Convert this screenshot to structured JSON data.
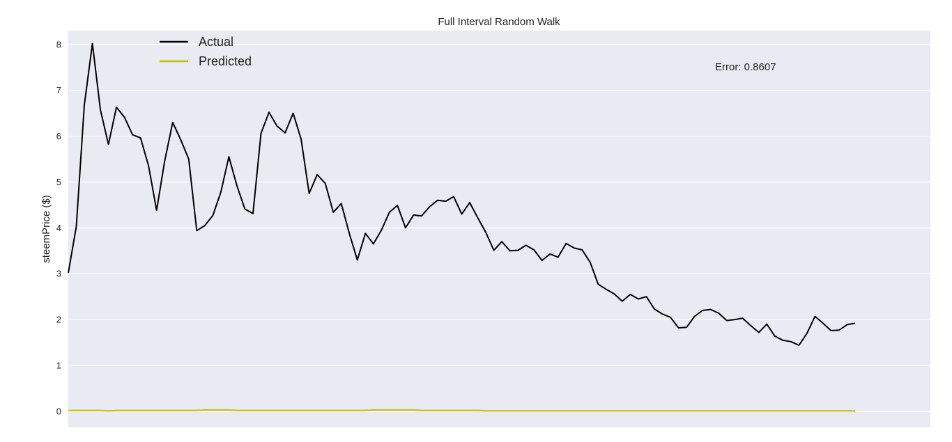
{
  "chart_data": {
    "type": "line",
    "title": "Full Interval Random Walk",
    "xlabel": "",
    "ylabel": "steemPrice ($)",
    "ylim": [
      -0.35,
      8.3
    ],
    "yticks": [
      0,
      1,
      2,
      3,
      4,
      5,
      6,
      7,
      8
    ],
    "xticks_shown": false,
    "grid": true,
    "legend_placement": "top-left",
    "annotation": "Error: 0.8607",
    "background": "#EAEAF2",
    "series": [
      {
        "name": "Actual",
        "color": "#000000",
        "values": [
          3.02,
          4.03,
          6.68,
          8.02,
          6.57,
          5.82,
          6.63,
          6.41,
          6.03,
          5.96,
          5.35,
          4.38,
          5.45,
          6.3,
          5.92,
          5.5,
          3.94,
          4.05,
          4.27,
          4.78,
          5.55,
          4.92,
          4.41,
          4.31,
          6.06,
          6.52,
          6.22,
          6.07,
          6.5,
          5.93,
          4.75,
          5.16,
          4.97,
          4.34,
          4.53,
          3.88,
          3.3,
          3.88,
          3.65,
          3.95,
          4.34,
          4.49,
          4.0,
          4.28,
          4.26,
          4.46,
          4.6,
          4.58,
          4.68,
          4.3,
          4.55,
          4.22,
          3.9,
          3.51,
          3.7,
          3.5,
          3.51,
          3.62,
          3.52,
          3.29,
          3.43,
          3.36,
          3.66,
          3.56,
          3.52,
          3.25,
          2.77,
          2.66,
          2.56,
          2.4,
          2.55,
          2.45,
          2.5,
          2.23,
          2.12,
          2.05,
          1.82,
          1.83,
          2.07,
          2.2,
          2.22,
          2.14,
          1.98,
          2.0,
          2.03,
          1.87,
          1.72,
          1.9,
          1.64,
          1.55,
          1.52,
          1.44,
          1.7,
          2.07,
          1.92,
          1.76,
          1.77,
          1.89,
          1.92
        ]
      },
      {
        "name": "Predicted",
        "color": "#BFBF00",
        "values": [
          0.02,
          0.02,
          0.02,
          0.02,
          0.02,
          0.01,
          0.02,
          0.02,
          0.02,
          0.02,
          0.02,
          0.02,
          0.02,
          0.02,
          0.02,
          0.02,
          0.02,
          0.03,
          0.03,
          0.03,
          0.03,
          0.02,
          0.02,
          0.02,
          0.02,
          0.02,
          0.02,
          0.02,
          0.02,
          0.02,
          0.02,
          0.02,
          0.02,
          0.02,
          0.02,
          0.02,
          0.02,
          0.02,
          0.03,
          0.03,
          0.03,
          0.03,
          0.03,
          0.03,
          0.02,
          0.02,
          0.02,
          0.02,
          0.02,
          0.02,
          0.02,
          0.02,
          0.01,
          0.01,
          0.01,
          0.01,
          0.01,
          0.01,
          0.01,
          0.01,
          0.01,
          0.01,
          0.01,
          0.01,
          0.01,
          0.01,
          0.01,
          0.01,
          0.01,
          0.01,
          0.01,
          0.01,
          0.01,
          0.01,
          0.01,
          0.01,
          0.01,
          0.01,
          0.01,
          0.01,
          0.01,
          0.01,
          0.01,
          0.01,
          0.01,
          0.01,
          0.01,
          0.01,
          0.01,
          0.01,
          0.01,
          0.01,
          0.01,
          0.01,
          0.01,
          0.01,
          0.01,
          0.01,
          0.01
        ]
      }
    ]
  }
}
